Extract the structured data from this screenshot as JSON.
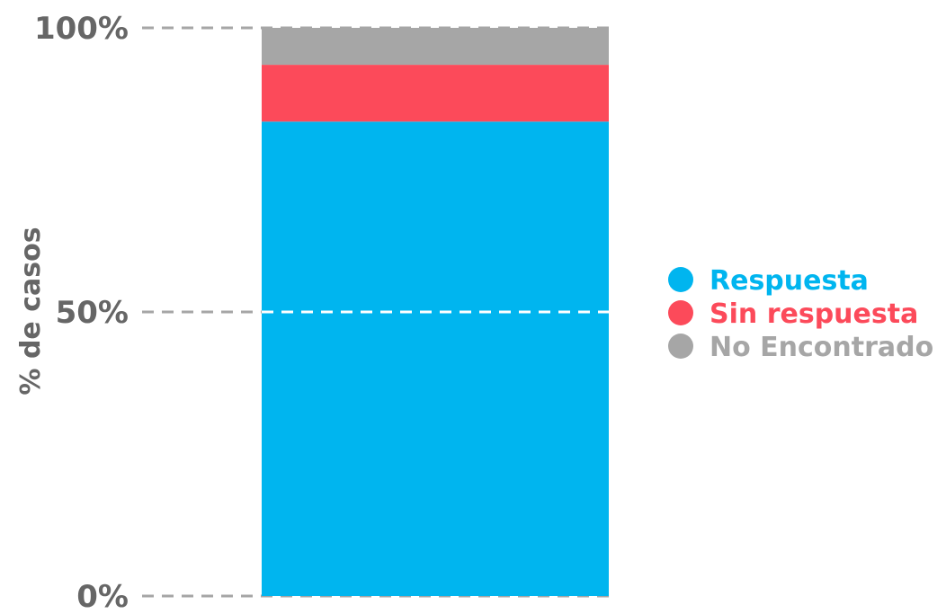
{
  "chart_data": {
    "type": "bar",
    "stacked": true,
    "categories": [
      ""
    ],
    "series": [
      {
        "name": "Respuesta",
        "values": [
          83.5
        ]
      },
      {
        "name": "Sin respuesta",
        "values": [
          10
        ]
      },
      {
        "name": "No Encontrado",
        "values": [
          6.5
        ]
      }
    ],
    "ylabel": "% de casos",
    "xlabel": "",
    "ylim": [
      0,
      100
    ],
    "yticks": [
      {
        "value": 0,
        "label": "0%"
      },
      {
        "value": 50,
        "label": "50%"
      },
      {
        "value": 100,
        "label": "100%"
      }
    ],
    "grid": true,
    "legend_position": "right"
  },
  "colors": {
    "Respuesta": "#00b5ef",
    "Sin respuesta": "#fc4a5a",
    "No Encontrado": "#a6a6a6",
    "axis_text": "#666666",
    "grid": "#a6a6a6",
    "grid_over_bar": "#ffffff"
  }
}
